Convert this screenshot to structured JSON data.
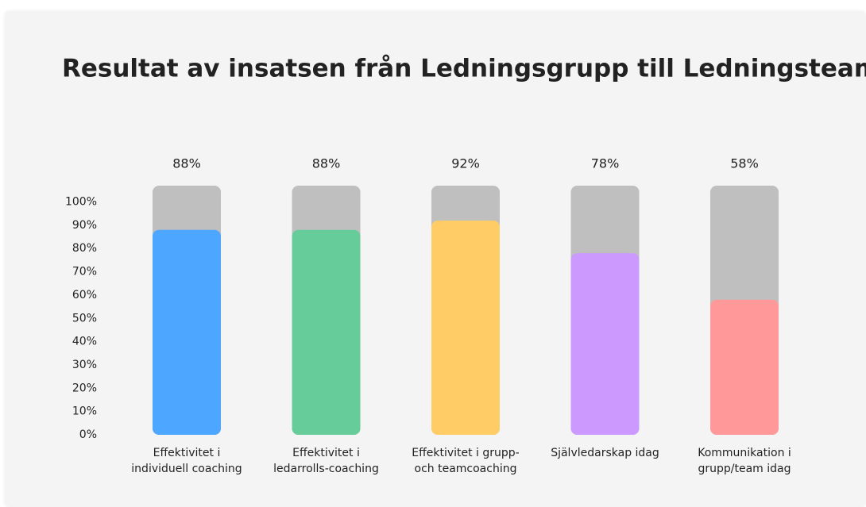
{
  "chart_data": {
    "type": "bar",
    "title": "Resultat av insatsen från Ledningsgrupp till Ledningsteam",
    "categories": [
      "Effektivitet i individuell coaching",
      "Effektivitet i ledarrolls-coaching",
      "Effektivitet i grupp- och teamcoaching",
      "Självledarskap idag",
      "Kommunikation i grupp/team idag"
    ],
    "values": [
      88,
      88,
      92,
      78,
      58
    ],
    "value_labels": [
      "88%",
      "88%",
      "92%",
      "78%",
      "58%"
    ],
    "colors": [
      "#4da6ff",
      "#66cc99",
      "#ffcc66",
      "#cc99ff",
      "#ff9999"
    ],
    "track_color": "#bfbfbf",
    "ylim": [
      0,
      107
    ],
    "yticks": [
      {
        "value": 0,
        "label": "0%"
      },
      {
        "value": 10,
        "label": "10%"
      },
      {
        "value": 20,
        "label": "20%"
      },
      {
        "value": 30,
        "label": "30%"
      },
      {
        "value": 40,
        "label": "40%"
      },
      {
        "value": 50,
        "label": "50%"
      },
      {
        "value": 60,
        "label": "60%"
      },
      {
        "value": 70,
        "label": "70%"
      },
      {
        "value": 80,
        "label": "80%"
      },
      {
        "value": 90,
        "label": "90%"
      },
      {
        "value": 100,
        "label": "100%"
      }
    ],
    "grid": false
  }
}
